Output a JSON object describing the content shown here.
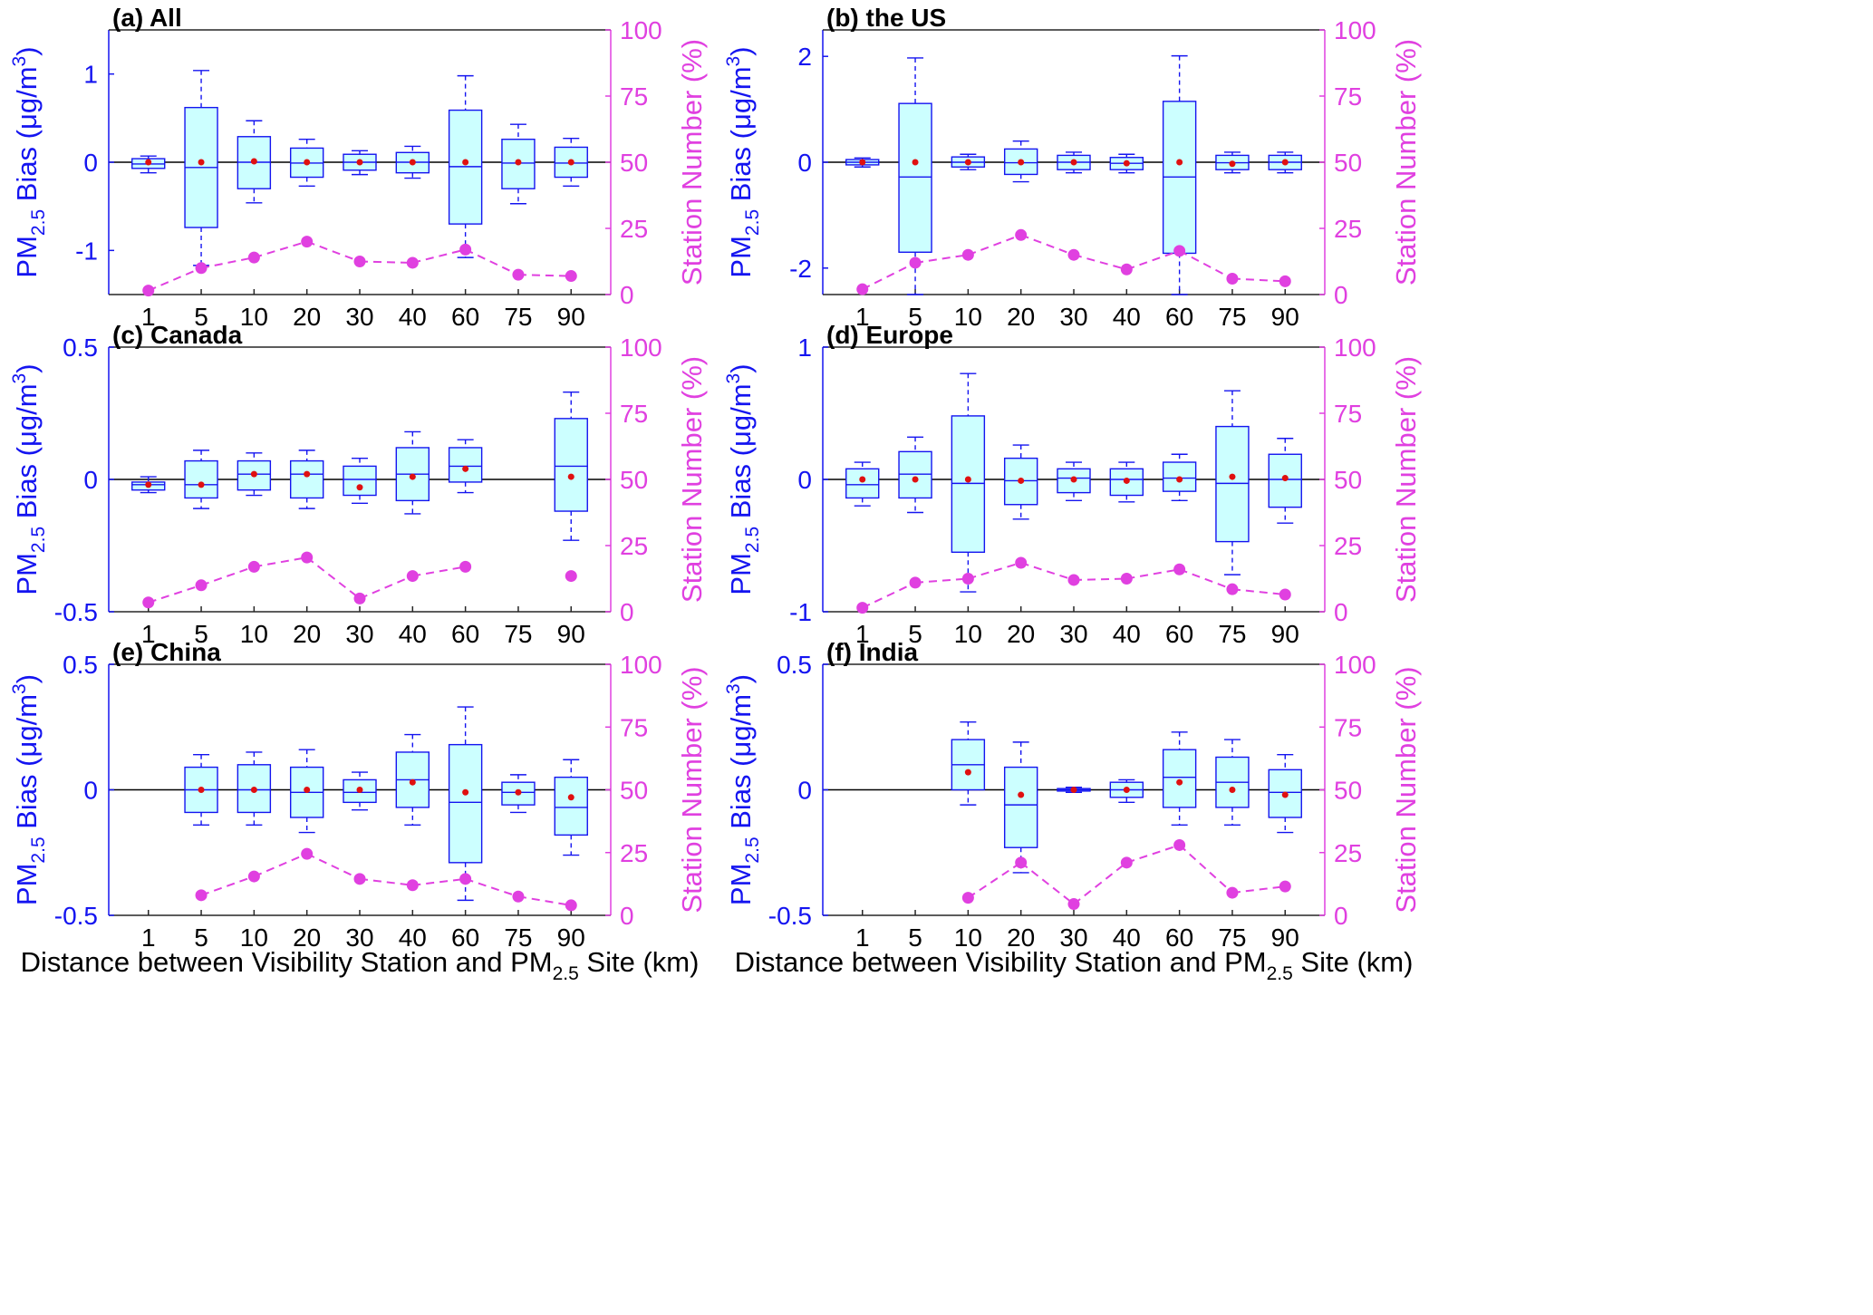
{
  "figure": {
    "xlabel_prefix": "Distance between Visibility Station and PM",
    "xlabel_sub": "2.5",
    "xlabel_suffix": " Site (km)",
    "ylabel_left_main": "PM",
    "ylabel_left_sub": "2.5",
    "ylabel_left_bias": " Bias (μg/m",
    "ylabel_left_sup": "3",
    "ylabel_left_close": ")",
    "ylabel_right": "Station Number (%)",
    "colors": {
      "left_axis": "#1414f0",
      "right_axis": "#e040e0",
      "box_fill": "#ccffff",
      "mean_dot": "#e01010",
      "zero_line": "#000000"
    }
  },
  "chart_data": [
    {
      "type": "box",
      "title": "(a) All",
      "categories": [
        "1",
        "5",
        "10",
        "20",
        "30",
        "40",
        "60",
        "75",
        "90"
      ],
      "ylim": [
        -1.5,
        1.5
      ],
      "yticks": [
        -1,
        0,
        1
      ],
      "ytick_labels": [
        "-1",
        "0",
        "1"
      ],
      "y2lim": [
        0,
        100
      ],
      "y2ticks": [
        0,
        25,
        50,
        75,
        100
      ],
      "y2tick_labels": [
        "0",
        "25",
        "50",
        "75",
        "100"
      ],
      "boxes": [
        {
          "wl": -0.12,
          "q1": -0.07,
          "med": -0.02,
          "q3": 0.04,
          "wh": 0.07,
          "mean": 0.0
        },
        {
          "wl": -1.17,
          "q1": -0.74,
          "med": -0.06,
          "q3": 0.62,
          "wh": 1.04,
          "mean": 0.0
        },
        {
          "wl": -0.46,
          "q1": -0.3,
          "med": 0.0,
          "q3": 0.29,
          "wh": 0.47,
          "mean": 0.01
        },
        {
          "wl": -0.27,
          "q1": -0.17,
          "med": -0.01,
          "q3": 0.16,
          "wh": 0.26,
          "mean": 0.0
        },
        {
          "wl": -0.14,
          "q1": -0.09,
          "med": 0.0,
          "q3": 0.09,
          "wh": 0.13,
          "mean": 0.0
        },
        {
          "wl": -0.18,
          "q1": -0.12,
          "med": 0.0,
          "q3": 0.11,
          "wh": 0.18,
          "mean": 0.0
        },
        {
          "wl": -1.08,
          "q1": -0.7,
          "med": -0.05,
          "q3": 0.59,
          "wh": 0.98,
          "mean": 0.0
        },
        {
          "wl": -0.47,
          "q1": -0.3,
          "med": -0.01,
          "q3": 0.26,
          "wh": 0.43,
          "mean": 0.0
        },
        {
          "wl": -0.27,
          "q1": -0.17,
          "med": -0.01,
          "q3": 0.17,
          "wh": 0.27,
          "mean": 0.0
        }
      ],
      "station_pct": [
        1.5,
        10,
        14,
        20,
        12.5,
        12,
        17,
        7.5,
        7
      ]
    },
    {
      "type": "box",
      "title": "(b) the US",
      "categories": [
        "1",
        "5",
        "10",
        "20",
        "30",
        "40",
        "60",
        "75",
        "90"
      ],
      "ylim": [
        -2.5,
        2.5
      ],
      "yticks": [
        -2,
        0,
        2
      ],
      "ytick_labels": [
        "-2",
        "0",
        "2"
      ],
      "y2lim": [
        0,
        100
      ],
      "y2ticks": [
        0,
        25,
        50,
        75,
        100
      ],
      "y2tick_labels": [
        "0",
        "25",
        "50",
        "75",
        "100"
      ],
      "boxes": [
        {
          "wl": -0.09,
          "q1": -0.05,
          "med": 0.0,
          "q3": 0.05,
          "wh": 0.08,
          "mean": 0.0
        },
        {
          "wl": -2.5,
          "q1": -1.7,
          "med": -0.28,
          "q3": 1.11,
          "wh": 1.97,
          "mean": 0.0
        },
        {
          "wl": -0.14,
          "q1": -0.09,
          "med": 0.0,
          "q3": 0.1,
          "wh": 0.15,
          "mean": 0.0
        },
        {
          "wl": -0.37,
          "q1": -0.23,
          "med": -0.01,
          "q3": 0.25,
          "wh": 0.4,
          "mean": 0.0
        },
        {
          "wl": -0.2,
          "q1": -0.14,
          "med": 0.0,
          "q3": 0.13,
          "wh": 0.19,
          "mean": 0.0
        },
        {
          "wl": -0.2,
          "q1": -0.14,
          "med": -0.02,
          "q3": 0.09,
          "wh": 0.15,
          "mean": -0.02
        },
        {
          "wl": -2.5,
          "q1": -1.72,
          "med": -0.28,
          "q3": 1.15,
          "wh": 2.01,
          "mean": 0.0
        },
        {
          "wl": -0.2,
          "q1": -0.14,
          "med": -0.01,
          "q3": 0.13,
          "wh": 0.19,
          "mean": -0.03
        },
        {
          "wl": -0.2,
          "q1": -0.14,
          "med": 0.0,
          "q3": 0.13,
          "wh": 0.19,
          "mean": 0.0
        }
      ],
      "station_pct": [
        2,
        12,
        15,
        22.5,
        15,
        9.5,
        16.5,
        6,
        5
      ]
    },
    {
      "type": "box",
      "title": "(c) Canada",
      "categories": [
        "1",
        "5",
        "10",
        "20",
        "30",
        "40",
        "60",
        "75",
        "90"
      ],
      "ylim": [
        -0.5,
        0.5
      ],
      "yticks": [
        -0.5,
        0,
        0.5
      ],
      "ytick_labels": [
        "-0.5",
        "0",
        "0.5"
      ],
      "y2lim": [
        0,
        100
      ],
      "y2ticks": [
        0,
        25,
        50,
        75,
        100
      ],
      "y2tick_labels": [
        "0",
        "25",
        "50",
        "75",
        "100"
      ],
      "boxes": [
        {
          "wl": -0.05,
          "q1": -0.04,
          "med": -0.02,
          "q3": -0.01,
          "wh": 0.01,
          "mean": -0.02
        },
        {
          "wl": -0.11,
          "q1": -0.07,
          "med": -0.02,
          "q3": 0.07,
          "wh": 0.11,
          "mean": -0.02
        },
        {
          "wl": -0.06,
          "q1": -0.04,
          "med": 0.02,
          "q3": 0.07,
          "wh": 0.1,
          "mean": 0.02
        },
        {
          "wl": -0.11,
          "q1": -0.07,
          "med": 0.02,
          "q3": 0.07,
          "wh": 0.11,
          "mean": 0.02
        },
        {
          "wl": -0.09,
          "q1": -0.06,
          "med": 0.0,
          "q3": 0.05,
          "wh": 0.08,
          "mean": -0.03
        },
        {
          "wl": -0.13,
          "q1": -0.08,
          "med": 0.02,
          "q3": 0.12,
          "wh": 0.18,
          "mean": 0.01
        },
        {
          "wl": -0.05,
          "q1": -0.01,
          "med": 0.05,
          "q3": 0.12,
          "wh": 0.15,
          "mean": 0.04
        },
        null,
        {
          "wl": -0.23,
          "q1": -0.12,
          "med": 0.05,
          "q3": 0.23,
          "wh": 0.33,
          "mean": 0.01
        }
      ],
      "station_pct": [
        3.5,
        10,
        17,
        20.5,
        5,
        13.5,
        17,
        null,
        13.5
      ]
    },
    {
      "type": "box",
      "title": "(d) Europe",
      "categories": [
        "1",
        "5",
        "10",
        "20",
        "30",
        "40",
        "60",
        "75",
        "90"
      ],
      "ylim": [
        -1,
        1
      ],
      "yticks": [
        -1,
        0,
        1
      ],
      "ytick_labels": [
        "-1",
        "0",
        "1"
      ],
      "y2lim": [
        0,
        100
      ],
      "y2ticks": [
        0,
        25,
        50,
        75,
        100
      ],
      "y2tick_labels": [
        "0",
        "25",
        "50",
        "75",
        "100"
      ],
      "boxes": [
        {
          "wl": -0.2,
          "q1": -0.14,
          "med": -0.04,
          "q3": 0.08,
          "wh": 0.13,
          "mean": 0.0
        },
        {
          "wl": -0.25,
          "q1": -0.14,
          "med": 0.04,
          "q3": 0.21,
          "wh": 0.32,
          "mean": 0.0
        },
        {
          "wl": -0.85,
          "q1": -0.55,
          "med": -0.03,
          "q3": 0.48,
          "wh": 0.8,
          "mean": 0.0
        },
        {
          "wl": -0.3,
          "q1": -0.19,
          "med": -0.01,
          "q3": 0.16,
          "wh": 0.26,
          "mean": -0.01
        },
        {
          "wl": -0.16,
          "q1": -0.1,
          "med": 0.01,
          "q3": 0.08,
          "wh": 0.13,
          "mean": 0.0
        },
        {
          "wl": -0.17,
          "q1": -0.12,
          "med": 0.0,
          "q3": 0.08,
          "wh": 0.13,
          "mean": -0.01
        },
        {
          "wl": -0.16,
          "q1": -0.09,
          "med": 0.01,
          "q3": 0.13,
          "wh": 0.19,
          "mean": 0.0
        },
        {
          "wl": -0.72,
          "q1": -0.47,
          "med": -0.03,
          "q3": 0.4,
          "wh": 0.67,
          "mean": 0.02
        },
        {
          "wl": -0.33,
          "q1": -0.21,
          "med": 0.0,
          "q3": 0.19,
          "wh": 0.31,
          "mean": 0.01
        }
      ],
      "station_pct": [
        1.5,
        11,
        12.5,
        18.5,
        12,
        12.5,
        16,
        8.5,
        6.5
      ]
    },
    {
      "type": "box",
      "title": "(e) China",
      "categories": [
        "1",
        "5",
        "10",
        "20",
        "30",
        "40",
        "60",
        "75",
        "90"
      ],
      "ylim": [
        -0.5,
        0.5
      ],
      "yticks": [
        -0.5,
        0,
        0.5
      ],
      "ytick_labels": [
        "-0.5",
        "0",
        "0.5"
      ],
      "y2lim": [
        0,
        100
      ],
      "y2ticks": [
        0,
        25,
        50,
        75,
        100
      ],
      "y2tick_labels": [
        "0",
        "25",
        "50",
        "75",
        "100"
      ],
      "boxes": [
        null,
        {
          "wl": -0.14,
          "q1": -0.09,
          "med": 0.0,
          "q3": 0.09,
          "wh": 0.14,
          "mean": 0.0
        },
        {
          "wl": -0.14,
          "q1": -0.09,
          "med": 0.0,
          "q3": 0.1,
          "wh": 0.15,
          "mean": 0.0
        },
        {
          "wl": -0.17,
          "q1": -0.11,
          "med": -0.01,
          "q3": 0.09,
          "wh": 0.16,
          "mean": 0.0
        },
        {
          "wl": -0.08,
          "q1": -0.05,
          "med": -0.01,
          "q3": 0.04,
          "wh": 0.07,
          "mean": 0.0
        },
        {
          "wl": -0.14,
          "q1": -0.07,
          "med": 0.04,
          "q3": 0.15,
          "wh": 0.22,
          "mean": 0.03
        },
        {
          "wl": -0.44,
          "q1": -0.29,
          "med": -0.05,
          "q3": 0.18,
          "wh": 0.33,
          "mean": -0.01
        },
        {
          "wl": -0.09,
          "q1": -0.06,
          "med": -0.01,
          "q3": 0.03,
          "wh": 0.06,
          "mean": -0.01
        },
        {
          "wl": -0.26,
          "q1": -0.18,
          "med": -0.07,
          "q3": 0.05,
          "wh": 0.12,
          "mean": -0.03
        }
      ],
      "station_pct": [
        null,
        8,
        15.5,
        24.5,
        14.5,
        12,
        14.5,
        7.5,
        4
      ]
    },
    {
      "type": "box",
      "title": "(f) India",
      "categories": [
        "1",
        "5",
        "10",
        "20",
        "30",
        "40",
        "60",
        "75",
        "90"
      ],
      "ylim": [
        -0.5,
        0.5
      ],
      "yticks": [
        -0.5,
        0,
        0.5
      ],
      "ytick_labels": [
        "-0.5",
        "0",
        "0.5"
      ],
      "y2lim": [
        0,
        100
      ],
      "y2ticks": [
        0,
        25,
        50,
        75,
        100
      ],
      "y2tick_labels": [
        "0",
        "25",
        "50",
        "75",
        "100"
      ],
      "boxes": [
        null,
        null,
        {
          "wl": -0.06,
          "q1": 0.0,
          "med": 0.1,
          "q3": 0.2,
          "wh": 0.27,
          "mean": 0.07
        },
        {
          "wl": -0.33,
          "q1": -0.23,
          "med": -0.06,
          "q3": 0.09,
          "wh": 0.19,
          "mean": -0.02
        },
        {
          "wl": -0.01,
          "q1": -0.005,
          "med": 0.0,
          "q3": 0.005,
          "wh": 0.01,
          "mean": 0.0
        },
        {
          "wl": -0.05,
          "q1": -0.03,
          "med": 0.0,
          "q3": 0.03,
          "wh": 0.04,
          "mean": 0.0
        },
        {
          "wl": -0.14,
          "q1": -0.07,
          "med": 0.05,
          "q3": 0.16,
          "wh": 0.23,
          "mean": 0.03
        },
        {
          "wl": -0.14,
          "q1": -0.07,
          "med": 0.03,
          "q3": 0.13,
          "wh": 0.2,
          "mean": 0.0
        },
        {
          "wl": -0.17,
          "q1": -0.11,
          "med": -0.01,
          "q3": 0.08,
          "wh": 0.14,
          "mean": -0.02
        }
      ],
      "station_pct": [
        null,
        null,
        7,
        21,
        4.5,
        21,
        28,
        9,
        11.5
      ]
    }
  ]
}
